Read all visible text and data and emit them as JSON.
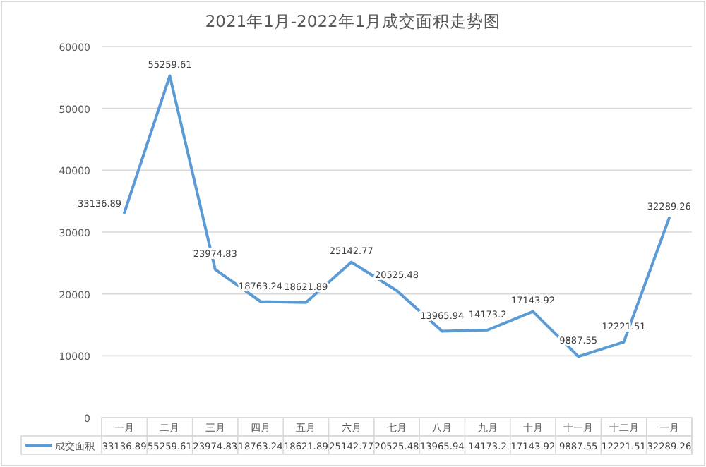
{
  "chart_data": {
    "type": "line",
    "title": "2021年1月-2022年1月成交面积走势图",
    "categories": [
      "一月",
      "二月",
      "三月",
      "四月",
      "五月",
      "六月",
      "七月",
      "八月",
      "九月",
      "十月",
      "十一月",
      "十二月",
      "一月"
    ],
    "series": [
      {
        "name": "成交面积",
        "color": "#5b9bd5",
        "values": [
          33136.89,
          55259.61,
          23974.83,
          18763.24,
          18621.89,
          25142.77,
          20525.48,
          13965.94,
          14173.2,
          17143.92,
          9887.55,
          12221.51,
          32289.26
        ],
        "value_labels": [
          "33136.89",
          "55259.61",
          "23974.83",
          "18763.24",
          "18621.89",
          "25142.77",
          "20525.48",
          "13965.94",
          "14173.2",
          "17143.92",
          "9887.55",
          "12221.51",
          "32289.26"
        ]
      }
    ],
    "ylim": [
      0,
      60000
    ],
    "yticks": [
      0,
      10000,
      20000,
      30000,
      40000,
      50000,
      60000
    ],
    "grid": "y",
    "legend": "bottom",
    "data_labels": true
  }
}
